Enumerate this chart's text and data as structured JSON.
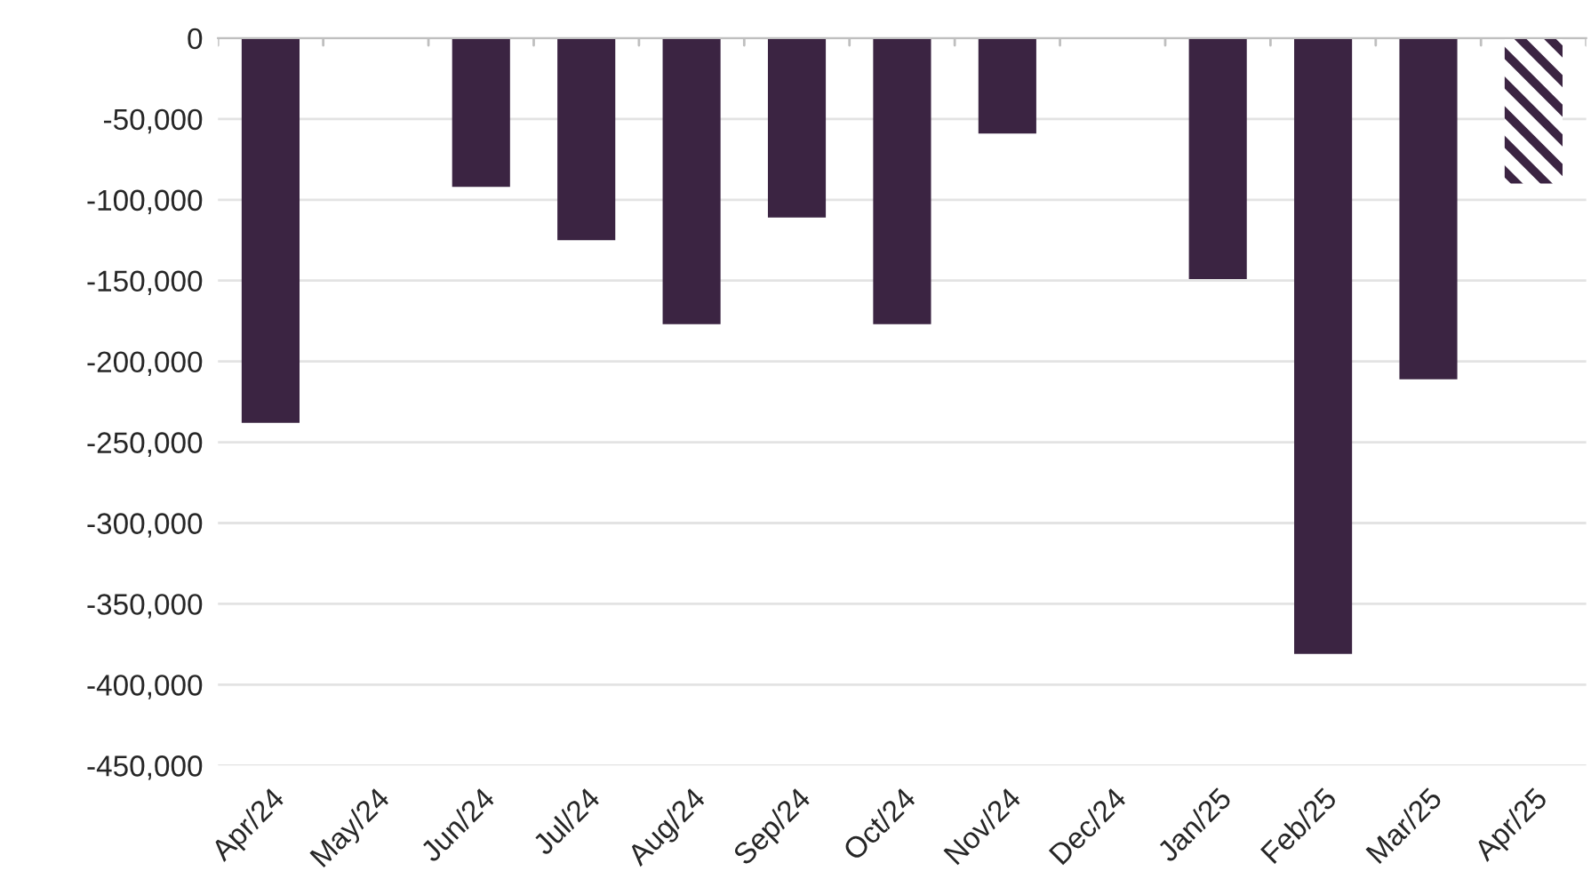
{
  "chart_data": {
    "type": "bar",
    "categories": [
      "Apr/24",
      "May/24",
      "Jun/24",
      "Jul/24",
      "Aug/24",
      "Sep/24",
      "Oct/24",
      "Nov/24",
      "Dec/24",
      "Jan/25",
      "Feb/25",
      "Mar/25",
      "Apr/25"
    ],
    "series": [
      {
        "color": "#3b2442",
        "values": [
          -238000,
          null,
          -92000,
          -125000,
          -177000,
          -111000,
          -177000,
          -59000,
          null,
          -149000,
          -381000,
          -211000,
          null
        ]
      },
      {
        "color": "#3b2442",
        "values": [
          null,
          null,
          null,
          null,
          null,
          null,
          null,
          null,
          null,
          null,
          null,
          null,
          -90000
        ]
      }
    ],
    "ylim": [
      -450000,
      0
    ],
    "yticks": [
      {
        "value": 0,
        "label": "0"
      },
      {
        "value": -50000,
        "label": "-50,000"
      },
      {
        "value": -100000,
        "label": "-100,000"
      },
      {
        "value": -150000,
        "label": "-150,000"
      },
      {
        "value": -200000,
        "label": "-200,000"
      },
      {
        "value": -250000,
        "label": "-250,000"
      },
      {
        "value": -300000,
        "label": "-300,000"
      },
      {
        "value": -350000,
        "label": "-350,000"
      },
      {
        "value": -400000,
        "label": "-400,000"
      },
      {
        "value": -450000,
        "label": "-450,000"
      }
    ],
    "grid": "y"
  }
}
